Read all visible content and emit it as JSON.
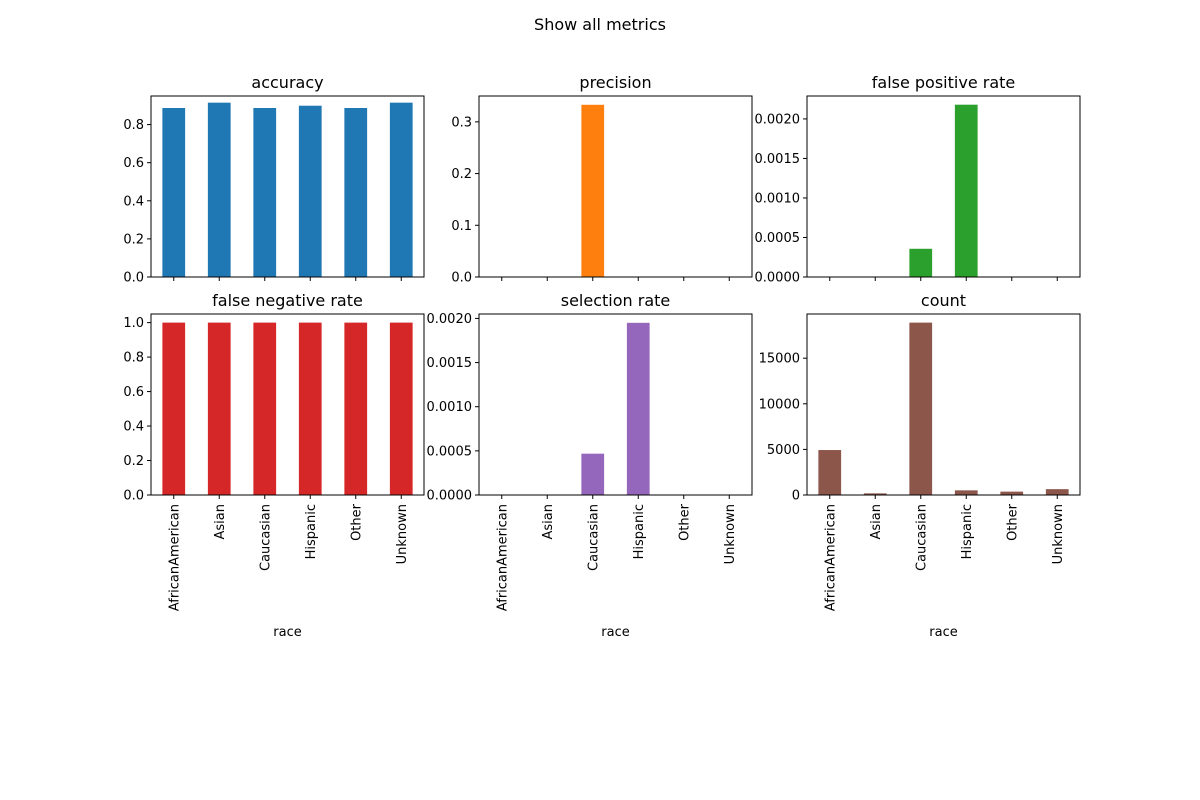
{
  "suptitle": "Show all metrics",
  "chart_data": [
    {
      "type": "bar",
      "title": "accuracy",
      "categories": [
        "AfricanAmerican",
        "Asian",
        "Caucasian",
        "Hispanic",
        "Other",
        "Unknown"
      ],
      "values": [
        0.887,
        0.915,
        0.887,
        0.899,
        0.887,
        0.915
      ],
      "xlabel": "",
      "ylabel": "",
      "ylim": [
        0,
        0.95
      ],
      "yticks": [
        "0.0",
        "0.2",
        "0.4",
        "0.6",
        "0.8"
      ],
      "ytick_values": [
        0,
        0.2,
        0.4,
        0.6,
        0.8
      ],
      "color": "#1f77b4",
      "show_xticklabels": false
    },
    {
      "type": "bar",
      "title": "precision",
      "categories": [
        "AfricanAmerican",
        "Asian",
        "Caucasian",
        "Hispanic",
        "Other",
        "Unknown"
      ],
      "values": [
        0,
        0,
        0.333,
        0,
        0,
        0
      ],
      "xlabel": "",
      "ylabel": "",
      "ylim": [
        0,
        0.35
      ],
      "yticks": [
        "0.0",
        "0.1",
        "0.2",
        "0.3"
      ],
      "ytick_values": [
        0,
        0.1,
        0.2,
        0.3
      ],
      "color": "#ff7f0e",
      "show_xticklabels": false
    },
    {
      "type": "bar",
      "title": "false positive rate",
      "categories": [
        "AfricanAmerican",
        "Asian",
        "Caucasian",
        "Hispanic",
        "Other",
        "Unknown"
      ],
      "values": [
        0,
        0,
        0.000357,
        0.00218,
        0,
        0
      ],
      "xlabel": "",
      "ylabel": "",
      "ylim": [
        0,
        0.00229
      ],
      "yticks": [
        "0.0000",
        "0.0005",
        "0.0010",
        "0.0015",
        "0.0020"
      ],
      "ytick_values": [
        0,
        0.0005,
        0.001,
        0.0015,
        0.002
      ],
      "color": "#2ca02c",
      "show_xticklabels": false
    },
    {
      "type": "bar",
      "title": "false negative rate",
      "categories": [
        "AfricanAmerican",
        "Asian",
        "Caucasian",
        "Hispanic",
        "Other",
        "Unknown"
      ],
      "values": [
        1.0,
        1.0,
        1.0,
        1.0,
        1.0,
        1.0
      ],
      "xlabel": "race",
      "ylabel": "",
      "ylim": [
        0,
        1.05
      ],
      "yticks": [
        "0.0",
        "0.2",
        "0.4",
        "0.6",
        "0.8",
        "1.0"
      ],
      "ytick_values": [
        0,
        0.2,
        0.4,
        0.6,
        0.8,
        1.0
      ],
      "color": "#d62728",
      "show_xticklabels": true
    },
    {
      "type": "bar",
      "title": "selection rate",
      "categories": [
        "AfricanAmerican",
        "Asian",
        "Caucasian",
        "Hispanic",
        "Other",
        "Unknown"
      ],
      "values": [
        0,
        0,
        0.000468,
        0.00195,
        0,
        0
      ],
      "xlabel": "race",
      "ylabel": "",
      "ylim": [
        0,
        0.00205
      ],
      "yticks": [
        "0.0000",
        "0.0005",
        "0.0010",
        "0.0015",
        "0.0020"
      ],
      "ytick_values": [
        0,
        0.0005,
        0.001,
        0.0015,
        0.002
      ],
      "color": "#9467bd",
      "show_xticklabels": true
    },
    {
      "type": "bar",
      "title": "count",
      "categories": [
        "AfricanAmerican",
        "Asian",
        "Caucasian",
        "Hispanic",
        "Other",
        "Unknown"
      ],
      "values": [
        4930,
        180,
        18900,
        510,
        370,
        640
      ],
      "xlabel": "race",
      "ylabel": "",
      "ylim": [
        0,
        19845
      ],
      "yticks": [
        "0",
        "5000",
        "10000",
        "15000"
      ],
      "ytick_values": [
        0,
        5000,
        10000,
        15000
      ],
      "color": "#8c564b",
      "show_xticklabels": true
    }
  ]
}
